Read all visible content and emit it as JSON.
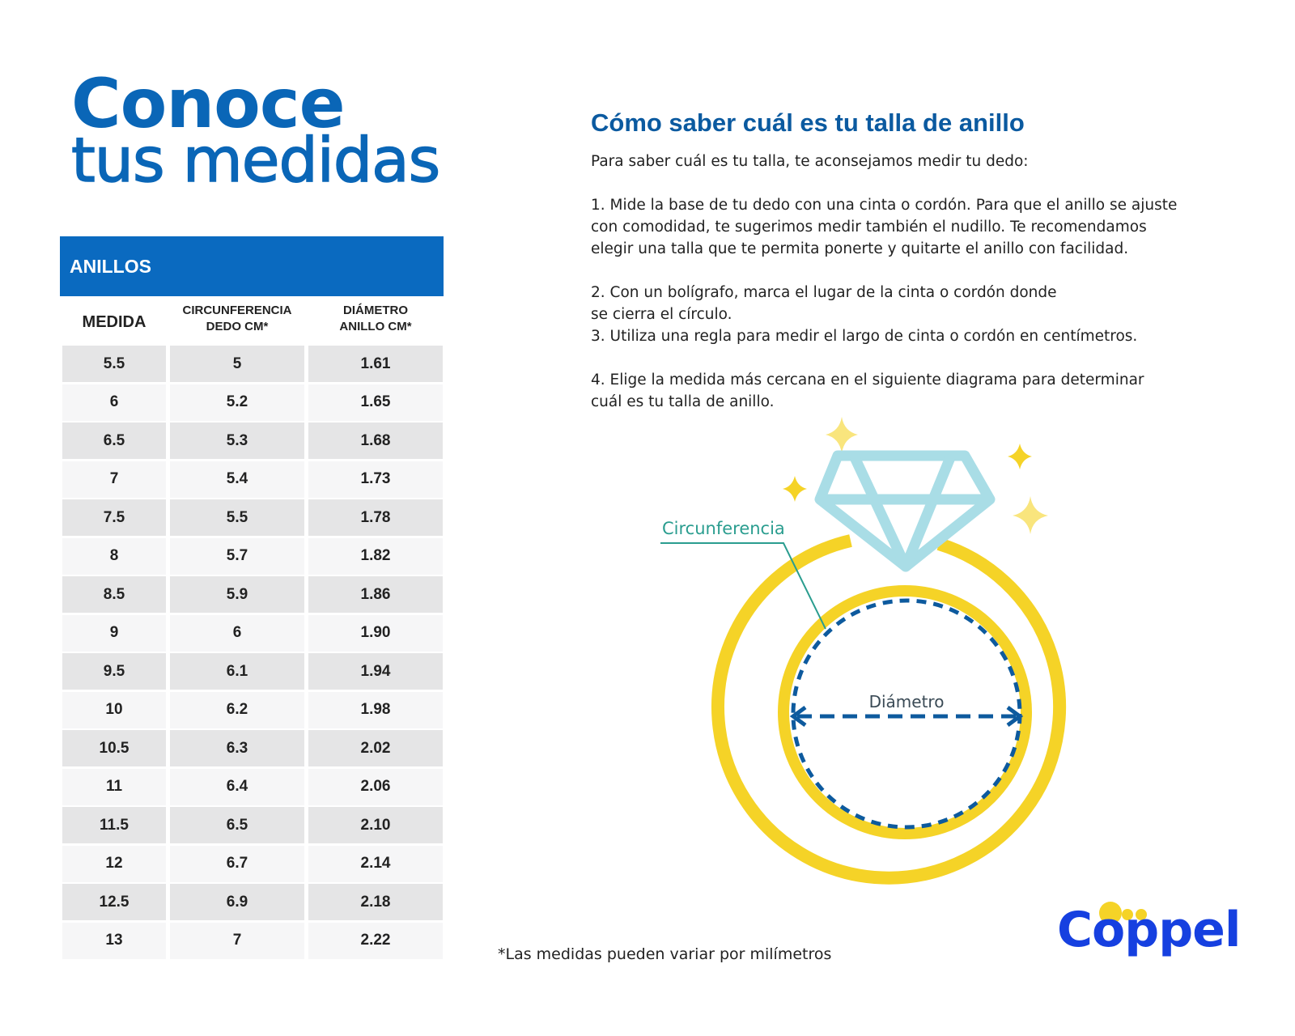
{
  "heading": {
    "line1": "Conoce",
    "line2": "tus medidas"
  },
  "table": {
    "title": "ANILLOS",
    "columns": [
      "MEDIDA",
      "CIRCUNFERENCIA\nDEDO CM*",
      "DIÁMETRO\nANILLO CM*"
    ],
    "rows": [
      [
        "5.5",
        "5",
        "1.61"
      ],
      [
        "6",
        "5.2",
        "1.65"
      ],
      [
        "6.5",
        "5.3",
        "1.68"
      ],
      [
        "7",
        "5.4",
        "1.73"
      ],
      [
        "7.5",
        "5.5",
        "1.78"
      ],
      [
        "8",
        "5.7",
        "1.82"
      ],
      [
        "8.5",
        "5.9",
        "1.86"
      ],
      [
        "9",
        "6",
        "1.90"
      ],
      [
        "9.5",
        "6.1",
        "1.94"
      ],
      [
        "10",
        "6.2",
        "1.98"
      ],
      [
        "10.5",
        "6.3",
        "2.02"
      ],
      [
        "11",
        "6.4",
        "2.06"
      ],
      [
        "11.5",
        "6.5",
        "2.10"
      ],
      [
        "12",
        "6.7",
        "2.14"
      ],
      [
        "12.5",
        "6.9",
        "2.18"
      ],
      [
        "13",
        "7",
        "2.22"
      ]
    ]
  },
  "instructions": {
    "title": "Cómo saber cuál es tu talla de anillo",
    "intro": "Para saber cuál es tu talla, te aconsejamos medir tu dedo:",
    "step1": "1. Mide la base de tu dedo con una cinta o cordón. Para que el anillo se ajuste\ncon comodidad, te sugerimos medir también el nudillo. Te recomendamos\nelegir una talla que te permita ponerte y quitarte el anillo con facilidad.",
    "step2": "2. Con un bolígrafo, marca el lugar de la cinta o cordón donde\nse cierra el círculo.",
    "step3": "3. Utiliza una regla para medir el largo de cinta o cordón en centímetros.",
    "step4": "4. Elige la medida más cercana en el siguiente diagrama para determinar\ncuál es tu talla de anillo."
  },
  "diagram": {
    "circumference_label": "Circunferencia",
    "diameter_label": "Diámetro",
    "colors": {
      "ring": "#f5d327",
      "diamond": "#a9dde6",
      "dashed": "#0d5a9e",
      "label": "#2a9d8f"
    }
  },
  "footnote": "*Las medidas pueden variar por milímetros",
  "logo": {
    "text": "Coppel",
    "dot_color": "#f5d327",
    "text_color": "#1640e0"
  }
}
